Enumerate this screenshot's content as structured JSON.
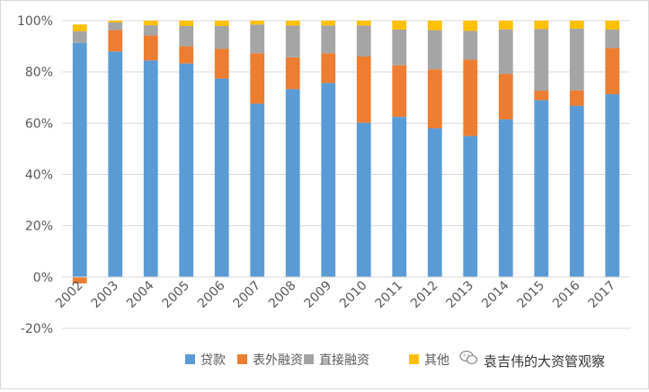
{
  "chart_data": {
    "type": "bar",
    "stacked": true,
    "categories": [
      "2002",
      "2003",
      "2004",
      "2005",
      "2006",
      "2007",
      "2008",
      "2009",
      "2010",
      "2011",
      "2012",
      "2013",
      "2014",
      "2015",
      "2016",
      "2017"
    ],
    "series": [
      {
        "name": "贷款",
        "color": "#5b9bd5",
        "values": [
          91.3,
          88,
          84.5,
          83.3,
          77.4,
          67.6,
          73.3,
          75.7,
          60.2,
          62.5,
          58,
          55,
          61.5,
          69,
          66.8,
          71.3
        ]
      },
      {
        "name": "表外融资",
        "color": "#ed7d31",
        "values": [
          -2.5,
          8.3,
          9.7,
          6.7,
          11.6,
          19.7,
          12.4,
          11.6,
          25.8,
          20.1,
          23,
          29.8,
          17.7,
          3.7,
          6,
          18
        ]
      },
      {
        "name": "直接融资",
        "color": "#a5a5a5",
        "values": [
          4.6,
          3,
          4,
          7.9,
          8.9,
          11.2,
          12.4,
          10.8,
          12.1,
          13.9,
          15.3,
          11.2,
          17.4,
          24,
          24.1,
          7.2
        ]
      },
      {
        "name": "其他",
        "color": "#ffc000",
        "values": [
          2.6,
          0.7,
          1.8,
          2.1,
          2.1,
          1.5,
          1.9,
          1.9,
          1.9,
          3.5,
          3.7,
          4,
          3.4,
          3.3,
          3.1,
          3.5
        ]
      }
    ],
    "ylim": [
      -20,
      100
    ],
    "yticks": [
      "-20%",
      "0%",
      "20%",
      "40%",
      "60%",
      "80%",
      "100%"
    ],
    "ytick_values": [
      -20,
      0,
      20,
      40,
      60,
      80,
      100
    ],
    "grid": true,
    "legend_position": "bottom",
    "title": "",
    "xlabel": "",
    "ylabel": ""
  },
  "watermark": {
    "text": "袁吉伟的大资管观察",
    "icon": "wechat-logo-icon"
  }
}
